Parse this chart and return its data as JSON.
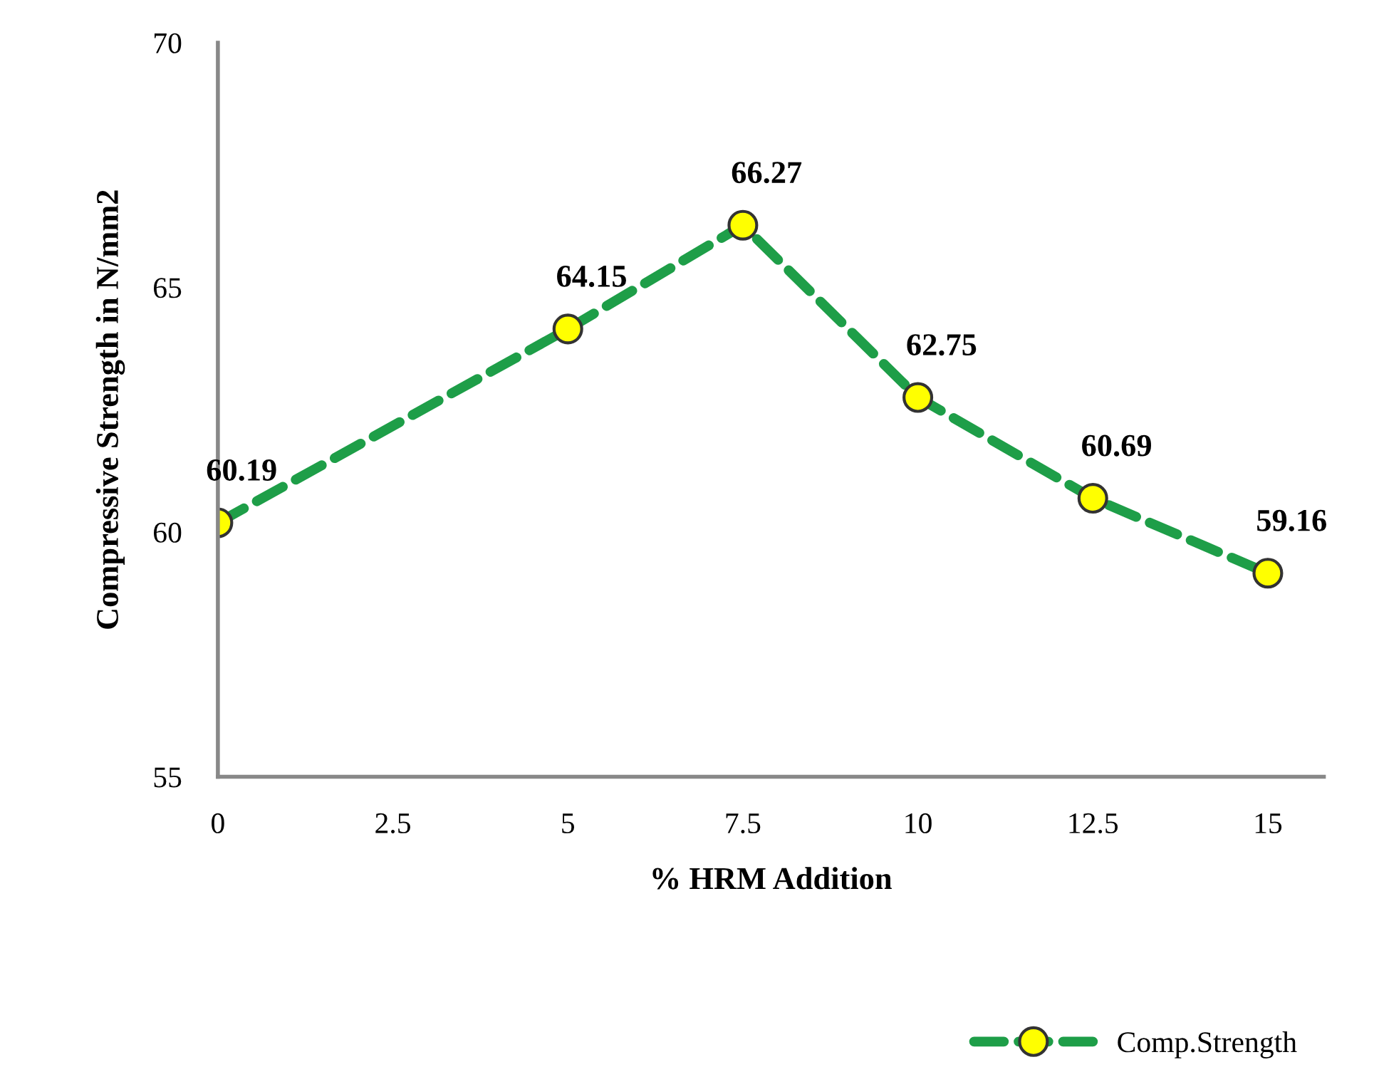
{
  "chart_data": {
    "type": "line",
    "xlabel": "% HRM Addition",
    "ylabel": "Compressive Strength in N/mm2",
    "x": [
      0,
      5,
      7.5,
      10,
      12.5,
      15
    ],
    "series": [
      {
        "name": "Comp.Strength",
        "color": "#1e9e48",
        "values": [
          60.19,
          64.15,
          66.27,
          62.75,
          60.69,
          59.16
        ]
      }
    ],
    "xlim": [
      0,
      15.8
    ],
    "xticks": [
      0,
      2.5,
      5,
      7.5,
      10,
      12.5,
      15
    ],
    "ylim": [
      55,
      70
    ],
    "yticks": [
      55,
      60,
      65,
      70
    ],
    "grid": false,
    "legend": "bottom right",
    "marker": "circle",
    "line_style": "dashed",
    "data_labels": true
  }
}
